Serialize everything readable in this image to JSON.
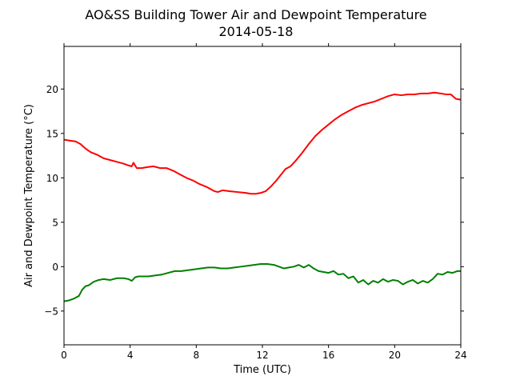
{
  "chart_data": {
    "type": "line",
    "title": "AO&SS Building Tower Air and Dewpoint Temperature",
    "subtitle": "2014-05-18",
    "xlabel": "Time (UTC)",
    "ylabel": "Air and Dewpoint Temperature (°C)",
    "xlim": [
      0,
      24
    ],
    "ylim": [
      -8.8,
      24.8
    ],
    "xticks": [
      0,
      4,
      8,
      12,
      16,
      20,
      24
    ],
    "yticks": [
      -5,
      0,
      5,
      10,
      15,
      20
    ],
    "grid": false,
    "legend": "none",
    "series": [
      {
        "color": "#ff0000",
        "x": [
          0,
          0.3,
          0.7,
          1.0,
          1.3,
          1.6,
          2.0,
          2.4,
          2.8,
          3.2,
          3.6,
          3.9,
          4.1,
          4.2,
          4.4,
          4.7,
          5.0,
          5.4,
          5.8,
          6.2,
          6.6,
          7.0,
          7.4,
          7.8,
          8.2,
          8.6,
          8.9,
          9.1,
          9.3,
          9.6,
          10.0,
          10.5,
          11.0,
          11.3,
          11.6,
          11.9,
          12.2,
          12.5,
          12.8,
          13.1,
          13.4,
          13.7,
          14.0,
          14.4,
          14.8,
          15.2,
          15.6,
          16.0,
          16.4,
          16.8,
          17.2,
          17.6,
          18.0,
          18.4,
          18.8,
          19.2,
          19.6,
          20.0,
          20.4,
          20.8,
          21.2,
          21.6,
          22.0,
          22.4,
          22.8,
          23.1,
          23.4,
          23.7,
          24.0
        ],
        "y": [
          14.3,
          14.2,
          14.1,
          13.8,
          13.3,
          12.9,
          12.6,
          12.2,
          12.0,
          11.8,
          11.6,
          11.4,
          11.3,
          11.7,
          11.1,
          11.1,
          11.2,
          11.3,
          11.1,
          11.1,
          10.8,
          10.4,
          10.0,
          9.7,
          9.3,
          9.0,
          8.7,
          8.5,
          8.4,
          8.6,
          8.5,
          8.4,
          8.3,
          8.2,
          8.2,
          8.3,
          8.5,
          9.0,
          9.6,
          10.3,
          11.0,
          11.3,
          11.9,
          12.8,
          13.8,
          14.7,
          15.4,
          16.0,
          16.6,
          17.1,
          17.5,
          17.9,
          18.2,
          18.4,
          18.6,
          18.9,
          19.2,
          19.4,
          19.3,
          19.4,
          19.4,
          19.5,
          19.5,
          19.6,
          19.5,
          19.4,
          19.4,
          18.9,
          18.8
        ]
      },
      {
        "color": "#008000",
        "x": [
          0,
          0.3,
          0.6,
          0.9,
          1.1,
          1.3,
          1.5,
          1.8,
          2.1,
          2.4,
          2.8,
          3.2,
          3.6,
          3.9,
          4.1,
          4.3,
          4.5,
          4.8,
          5.1,
          5.5,
          5.9,
          6.3,
          6.7,
          7.1,
          7.5,
          7.9,
          8.3,
          8.7,
          9.1,
          9.5,
          9.9,
          10.3,
          10.7,
          11.1,
          11.5,
          11.9,
          12.3,
          12.7,
          13.0,
          13.3,
          13.6,
          13.9,
          14.2,
          14.5,
          14.8,
          15.1,
          15.4,
          15.7,
          16.0,
          16.3,
          16.6,
          16.9,
          17.2,
          17.5,
          17.8,
          18.1,
          18.4,
          18.7,
          19.0,
          19.3,
          19.6,
          19.9,
          20.2,
          20.5,
          20.8,
          21.1,
          21.4,
          21.7,
          22.0,
          22.3,
          22.6,
          22.9,
          23.2,
          23.5,
          23.8,
          24.0
        ],
        "y": [
          -3.9,
          -3.8,
          -3.6,
          -3.3,
          -2.6,
          -2.2,
          -2.1,
          -1.7,
          -1.5,
          -1.4,
          -1.5,
          -1.3,
          -1.3,
          -1.4,
          -1.6,
          -1.2,
          -1.1,
          -1.1,
          -1.1,
          -1.0,
          -0.9,
          -0.7,
          -0.5,
          -0.5,
          -0.4,
          -0.3,
          -0.2,
          -0.1,
          -0.1,
          -0.2,
          -0.2,
          -0.1,
          0.0,
          0.1,
          0.2,
          0.3,
          0.3,
          0.2,
          0.0,
          -0.2,
          -0.1,
          0.0,
          0.2,
          -0.1,
          0.2,
          -0.2,
          -0.5,
          -0.6,
          -0.7,
          -0.5,
          -0.9,
          -0.8,
          -1.3,
          -1.1,
          -1.8,
          -1.5,
          -2.0,
          -1.6,
          -1.8,
          -1.4,
          -1.7,
          -1.5,
          -1.6,
          -2.0,
          -1.7,
          -1.5,
          -1.9,
          -1.6,
          -1.8,
          -1.4,
          -0.8,
          -0.9,
          -0.6,
          -0.7,
          -0.5,
          -0.5
        ]
      }
    ]
  }
}
